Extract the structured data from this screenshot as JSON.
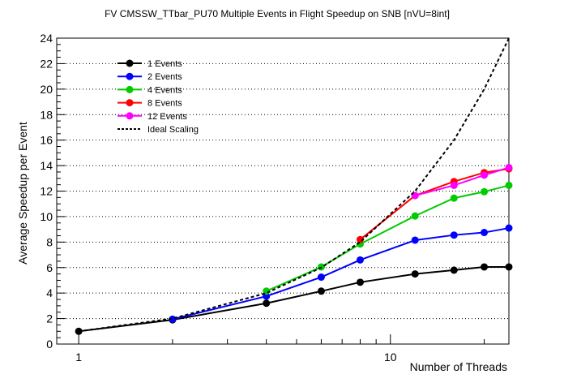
{
  "chart_data": {
    "type": "line",
    "title": "FV CMSSW_TTbar_PU70 Multiple Events in Flight Speedup on SNB [nVU=8int]",
    "xlabel": "Number of Threads",
    "ylabel": "Average Speedup per Event",
    "xscale": "log",
    "xlim": [
      0.85,
      24
    ],
    "ylim": [
      0,
      24
    ],
    "y_ticks": [
      0,
      2,
      4,
      6,
      8,
      10,
      12,
      14,
      16,
      18,
      20,
      22,
      24
    ],
    "x_tick_labels": [
      {
        "value": 1,
        "label": "1"
      },
      {
        "value": 10,
        "label": "10"
      }
    ],
    "grid": "horizontal dotted",
    "legend_position": "top-left",
    "series": [
      {
        "name": "1 Events",
        "color": "#000000",
        "x": [
          1,
          2,
          4,
          6,
          8,
          12,
          16,
          20,
          24
        ],
        "y": [
          1.0,
          1.9,
          3.2,
          4.15,
          4.85,
          5.5,
          5.8,
          6.05,
          6.05
        ]
      },
      {
        "name": "2 Events",
        "color": "#0000ff",
        "x": [
          2,
          4,
          6,
          8,
          12,
          16,
          20,
          24
        ],
        "y": [
          1.95,
          3.75,
          5.25,
          6.6,
          8.15,
          8.55,
          8.75,
          9.1
        ]
      },
      {
        "name": "4 Events",
        "color": "#00cc00",
        "x": [
          4,
          6,
          8,
          12,
          16,
          20,
          24
        ],
        "y": [
          4.15,
          6.05,
          7.85,
          10.05,
          11.45,
          11.95,
          12.45
        ]
      },
      {
        "name": "8 Events",
        "color": "#ff0000",
        "x": [
          8,
          12,
          16,
          20,
          24
        ],
        "y": [
          8.2,
          11.65,
          12.75,
          13.45,
          13.75
        ]
      },
      {
        "name": "12 Events",
        "color": "#ff00ff",
        "x": [
          12,
          16,
          20,
          24
        ],
        "y": [
          11.65,
          12.45,
          13.25,
          13.85
        ]
      },
      {
        "name": "Ideal Scaling",
        "color": "#000000",
        "dashed": true,
        "x": [
          1,
          2,
          4,
          6,
          8,
          12,
          16,
          20,
          24
        ],
        "y": [
          1,
          2,
          4,
          6,
          8,
          12,
          16,
          20,
          24
        ]
      }
    ]
  }
}
